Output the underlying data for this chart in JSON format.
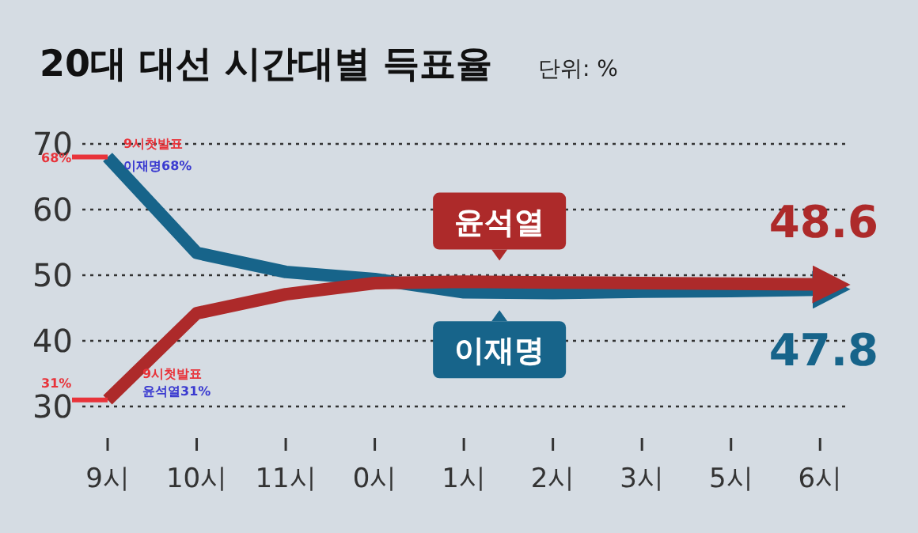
{
  "chart_data": {
    "type": "line",
    "title": "20대 대선 시간대별 득표율",
    "subtitle": "단위: %",
    "categories": [
      "9시",
      "10시",
      "11시",
      "0시",
      "1시",
      "2시",
      "3시",
      "5시",
      "6시"
    ],
    "ylim": [
      30,
      70
    ],
    "yticks": [
      30,
      40,
      50,
      60,
      70
    ],
    "grid": "y",
    "marker": "none",
    "line_style": "solid",
    "series": [
      {
        "name": "윤석열",
        "color": "#ad2a2a",
        "values": [
          31,
          44.2,
          47.1,
          48.8,
          49,
          48.9,
          48.8,
          48.7,
          48.6
        ],
        "value_labels": [
          null,
          null,
          null,
          null,
          null,
          null,
          null,
          null,
          "48.6"
        ]
      },
      {
        "name": "이재명",
        "color": "#17648a",
        "values": [
          68,
          53.4,
          50.5,
          49.4,
          47.4,
          47.3,
          47.5,
          47.6,
          47.8
        ],
        "value_labels": [
          null,
          null,
          null,
          null,
          null,
          null,
          null,
          null,
          "47.8"
        ]
      }
    ],
    "annotations": [
      {
        "text": "68%",
        "x": "9시",
        "y": 68
      },
      "9시첫발표",
      "이재명68%",
      {
        "text": "31%",
        "x": "9시",
        "y": 31
      },
      "9시첫발표",
      "윤석열31%"
    ]
  }
}
